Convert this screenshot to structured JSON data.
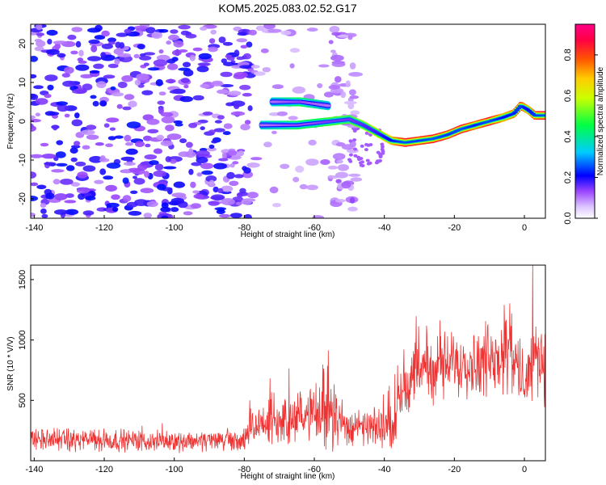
{
  "figure": {
    "title": "KOM5.2025.083.02.52.G17"
  },
  "chart_data": [
    {
      "type": "heatmap",
      "xlabel": "Height of straight line (km)",
      "ylabel": "Frequency (Hz)",
      "xlim": [
        -141,
        6
      ],
      "ylim": [
        -25,
        25
      ],
      "xticks": [
        -140,
        -120,
        -100,
        -80,
        -60,
        -40,
        -20,
        0
      ],
      "yticks": [
        -20,
        -10,
        0,
        10,
        20
      ],
      "colorbar": {
        "label": "Normalized spectral amplitude",
        "range": [
          0,
          0.95
        ],
        "ticks": [
          0.0,
          0.2,
          0.4,
          0.6,
          0.8
        ],
        "colormap": [
          "#ffffff",
          "#cc99ff",
          "#7700ff",
          "#0000ff",
          "#00ccff",
          "#00ff00",
          "#ffff00",
          "#ff8800",
          "#ff0000",
          "#ff0088"
        ]
      },
      "signal_trace": {
        "x": [
          -75,
          -70,
          -65,
          -60,
          -55,
          -50,
          -46,
          -42,
          -38,
          -34,
          -30,
          -26,
          -22,
          -18,
          -14,
          -10,
          -6,
          -3,
          -1,
          1,
          3,
          6
        ],
        "freq": [
          -1,
          -1,
          -1,
          -0.5,
          0,
          0.5,
          -1,
          -3,
          -5,
          -5.5,
          -5,
          -4.5,
          -3.5,
          -2,
          -1,
          0,
          1,
          2,
          4,
          3,
          1.5,
          1.5
        ],
        "amplitude": [
          0.35,
          0.4,
          0.45,
          0.45,
          0.5,
          0.5,
          0.55,
          0.6,
          0.7,
          0.85,
          0.8,
          0.85,
          0.8,
          0.85,
          0.75,
          0.85,
          0.7,
          0.75,
          0.8,
          0.7,
          0.8,
          0.85
        ]
      },
      "branch_trace": {
        "x": [
          -72,
          -68,
          -64,
          -60,
          -56
        ],
        "freq": [
          5,
          5,
          5,
          4.5,
          4
        ],
        "amplitude": [
          0.35,
          0.4,
          0.45,
          0.4,
          0.35
        ]
      }
    },
    {
      "type": "line",
      "xlabel": "Height of straight line (km)",
      "ylabel": "SNR (10 * V/V)",
      "xlim": [
        -141,
        6
      ],
      "ylim": [
        0,
        1620
      ],
      "xticks": [
        -140,
        -120,
        -100,
        -80,
        -60,
        -40,
        -20,
        0
      ],
      "yticks": [
        500,
        1000,
        1500
      ],
      "series": [
        {
          "color": "#ee3333",
          "envelope": {
            "x": [
              -141,
              -120,
              -100,
              -90,
              -80,
              -78,
              -75,
              -70,
              -65,
              -60,
              -57,
              -55,
              -52,
              -50,
              -45,
              -40,
              -37,
              -36,
              -34,
              -30,
              -25,
              -20,
              -15,
              -10,
              -7,
              -5,
              -4,
              -3,
              -2,
              0,
              2,
              4,
              6
            ],
            "center": [
              170,
              170,
              160,
              170,
              170,
              250,
              300,
              320,
              350,
              380,
              420,
              450,
              300,
              280,
              270,
              280,
              300,
              550,
              650,
              750,
              770,
              800,
              820,
              850,
              900,
              950,
              1050,
              850,
              700,
              700,
              800,
              850,
              850
            ],
            "spread": [
              110,
              110,
              100,
              110,
              120,
              180,
              220,
              230,
              260,
              300,
              400,
              450,
              250,
              200,
              180,
              200,
              240,
              350,
              320,
              300,
              320,
              330,
              340,
              360,
              400,
              450,
              450,
              400,
              380,
              360,
              380,
              420,
              420
            ]
          }
        }
      ]
    }
  ]
}
